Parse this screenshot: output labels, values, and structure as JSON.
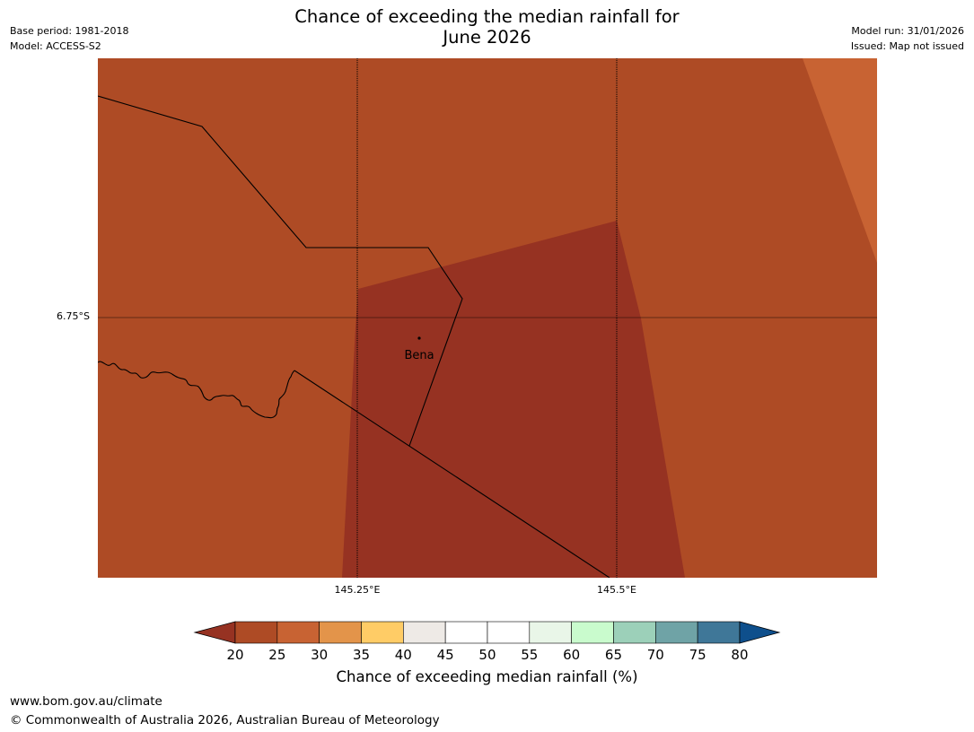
{
  "title": {
    "line1": "Chance of exceeding the median rainfall for",
    "line2": "June 2026"
  },
  "meta": {
    "base_period": "Base period: 1981-2018",
    "model": "Model: ACCESS-S2",
    "model_run": "Model run: 31/01/2026",
    "issued": "Issued: Map not issued"
  },
  "map": {
    "latitude_label": "6.75°S",
    "longitude_labels": [
      "145.25°E",
      "145.5°E"
    ],
    "town": "Bena",
    "category_colors": {
      "20-25": "#ae4b25",
      "below-20": "#963222",
      "25-30": "#c86333"
    }
  },
  "colorbar": {
    "title": "Chance of exceeding median rainfall (%)",
    "ticks": [
      "20",
      "25",
      "30",
      "35",
      "40",
      "45",
      "50",
      "55",
      "60",
      "65",
      "70",
      "75",
      "80"
    ],
    "under_color": "#963222",
    "over_color": "#0e4f8c",
    "bins": [
      "#ae4b25",
      "#c86333",
      "#e3944a",
      "#ffcc66",
      "#eeeae6",
      "#ffffff",
      "#ffffff",
      "#e9f6e8",
      "#c9fbcd",
      "#9cd0b9",
      "#6fa3a6",
      "#3f7798"
    ]
  },
  "footer": {
    "website": "www.bom.gov.au/climate",
    "copyright": "© Commonwealth of Australia 2026, Australian Bureau of Meteorology"
  }
}
